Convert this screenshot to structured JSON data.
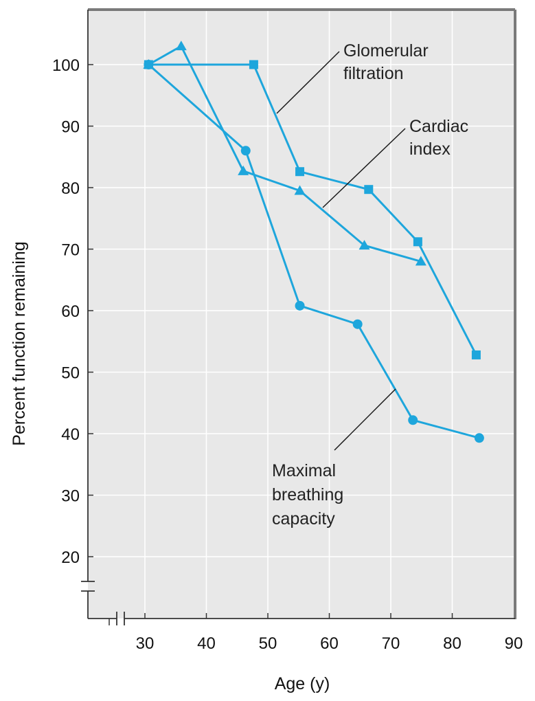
{
  "chart_data": {
    "type": "line",
    "xlabel": "Age (y)",
    "ylabel": "Percent function remaining",
    "xlim": [
      20,
      90
    ],
    "ylim": [
      10,
      110
    ],
    "x_ticks": [
      30,
      40,
      50,
      60,
      70,
      80,
      90
    ],
    "y_ticks": [
      20,
      30,
      40,
      50,
      60,
      70,
      80,
      90,
      100
    ],
    "axis_breaks": {
      "x": true,
      "y": true
    },
    "grid": true,
    "background": "#e8e8e8",
    "line_color": "#1ea6dc",
    "series": [
      {
        "name": "Glomerular filtration",
        "marker": "square",
        "points": [
          [
            30.6,
            100
          ],
          [
            47.7,
            100
          ],
          [
            55.2,
            82.6
          ],
          [
            66.4,
            79.7
          ],
          [
            74.4,
            71.2
          ],
          [
            83.9,
            52.8
          ]
        ]
      },
      {
        "name": "Cardiac index",
        "marker": "triangle",
        "points": [
          [
            30.6,
            100
          ],
          [
            35.9,
            103
          ],
          [
            46.0,
            82.7
          ],
          [
            55.2,
            79.5
          ],
          [
            65.7,
            70.6
          ],
          [
            74.9,
            68.0
          ]
        ]
      },
      {
        "name": "Maximal breathing capacity",
        "marker": "circle",
        "points": [
          [
            30.6,
            100
          ],
          [
            46.4,
            86
          ],
          [
            55.2,
            60.8
          ],
          [
            64.6,
            57.8
          ],
          [
            73.6,
            42.2
          ],
          [
            84.4,
            39.3
          ]
        ]
      }
    ],
    "annotations": [
      {
        "lines": [
          "Glomerular",
          "filtration"
        ],
        "series": "Glomerular filtration"
      },
      {
        "lines": [
          "Cardiac",
          "index"
        ],
        "series": "Cardiac index"
      },
      {
        "lines": [
          "Maximal",
          "breathing",
          "capacity"
        ],
        "series": "Maximal breathing capacity"
      }
    ]
  }
}
